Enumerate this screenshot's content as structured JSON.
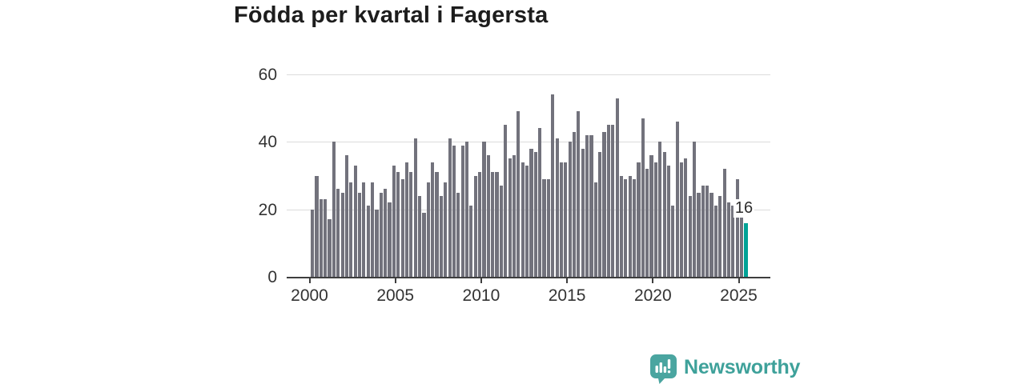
{
  "title": "Födda per kvartal i Fagersta",
  "chart_data": {
    "type": "bar",
    "title": "Födda per kvartal i Fagersta",
    "x_start": "2000 Q1",
    "x_end": "2025 Q2",
    "frequency": "quarterly",
    "values": [
      20,
      30,
      23,
      23,
      17,
      40,
      26,
      25,
      36,
      28,
      33,
      25,
      28,
      21,
      28,
      20,
      25,
      26,
      22,
      33,
      31,
      29,
      34,
      31,
      41,
      24,
      19,
      28,
      34,
      31,
      24,
      28,
      41,
      39,
      25,
      39,
      40,
      21,
      30,
      31,
      40,
      36,
      31,
      31,
      27,
      45,
      35,
      36,
      49,
      34,
      33,
      38,
      37,
      44,
      29,
      29,
      54,
      41,
      34,
      34,
      40,
      43,
      49,
      38,
      42,
      42,
      28,
      37,
      43,
      45,
      45,
      53,
      30,
      29,
      30,
      29,
      34,
      47,
      32,
      36,
      34,
      40,
      37,
      33,
      21,
      46,
      34,
      35,
      24,
      40,
      25,
      27,
      27,
      25,
      21,
      24,
      32,
      22,
      21,
      29,
      18,
      16
    ],
    "x_tick_labels": [
      "2000",
      "2005",
      "2010",
      "2015",
      "2020",
      "2025"
    ],
    "y_tick_labels": [
      "0",
      "20",
      "40",
      "60"
    ],
    "ylim": [
      0,
      60
    ],
    "grid": "horizontal",
    "legend": "none",
    "bar_color": "#72727C",
    "highlight_color": "#00A296",
    "highlight_index": "last",
    "annotation": {
      "text": "16",
      "target": "last-bar"
    }
  },
  "footer": {
    "brand": "Newsworthy",
    "brand_color": "#3EA19A",
    "logo_icon": "newsworthy-speech-bubble-chart-icon"
  }
}
